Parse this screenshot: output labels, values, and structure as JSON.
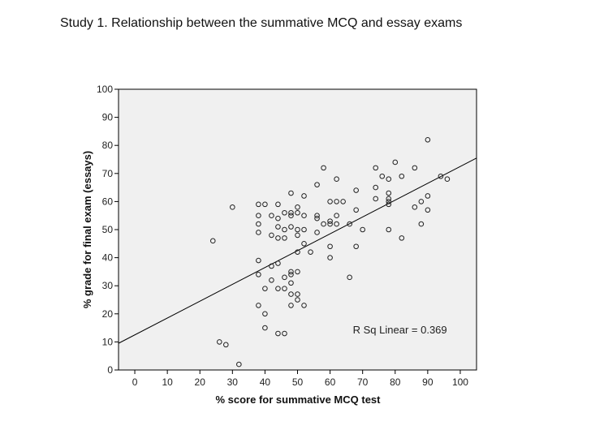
{
  "page": {
    "title": "Study 1. Relationship between the summative MCQ and essay exams"
  },
  "chart_data": {
    "type": "scatter",
    "title": "Study 1. Relationship between the summative MCQ and essay exams",
    "xlabel": "% score for summative MCQ test",
    "ylabel": "% grade for final exam (essays)",
    "xlim": [
      -5,
      105
    ],
    "ylim": [
      0,
      100
    ],
    "xticks": [
      0,
      10,
      20,
      30,
      40,
      50,
      60,
      70,
      80,
      90,
      100
    ],
    "yticks": [
      0,
      10,
      20,
      30,
      40,
      50,
      60,
      70,
      80,
      90,
      100
    ],
    "grid": false,
    "background_color": "#f0f0f0",
    "annotation": "R Sq Linear = 0.369",
    "fit_line": {
      "intercept": 12.5,
      "slope": 0.6
    },
    "points": [
      [
        24,
        46
      ],
      [
        26,
        10
      ],
      [
        28,
        9
      ],
      [
        30,
        58
      ],
      [
        32,
        2
      ],
      [
        38,
        59
      ],
      [
        38,
        55
      ],
      [
        38,
        52
      ],
      [
        38,
        49
      ],
      [
        38,
        39
      ],
      [
        38,
        34
      ],
      [
        38,
        23
      ],
      [
        40,
        59
      ],
      [
        40,
        29
      ],
      [
        40,
        20
      ],
      [
        40,
        15
      ],
      [
        42,
        55
      ],
      [
        42,
        48
      ],
      [
        42,
        37
      ],
      [
        42,
        32
      ],
      [
        44,
        59
      ],
      [
        44,
        54
      ],
      [
        44,
        51
      ],
      [
        44,
        47
      ],
      [
        44,
        38
      ],
      [
        44,
        29
      ],
      [
        44,
        13
      ],
      [
        46,
        56
      ],
      [
        46,
        50
      ],
      [
        46,
        47
      ],
      [
        46,
        33
      ],
      [
        46,
        29
      ],
      [
        46,
        13
      ],
      [
        48,
        63
      ],
      [
        48,
        56
      ],
      [
        48,
        55
      ],
      [
        48,
        51
      ],
      [
        48,
        35
      ],
      [
        48,
        34
      ],
      [
        48,
        31
      ],
      [
        48,
        27
      ],
      [
        48,
        23
      ],
      [
        50,
        58
      ],
      [
        50,
        56
      ],
      [
        50,
        50
      ],
      [
        50,
        48
      ],
      [
        50,
        42
      ],
      [
        50,
        35
      ],
      [
        50,
        27
      ],
      [
        50,
        25
      ],
      [
        52,
        62
      ],
      [
        52,
        55
      ],
      [
        52,
        50
      ],
      [
        52,
        45
      ],
      [
        52,
        23
      ],
      [
        54,
        42
      ],
      [
        56,
        66
      ],
      [
        56,
        55
      ],
      [
        56,
        54
      ],
      [
        56,
        49
      ],
      [
        58,
        72
      ],
      [
        58,
        52
      ],
      [
        60,
        60
      ],
      [
        60,
        53
      ],
      [
        60,
        52
      ],
      [
        60,
        44
      ],
      [
        60,
        40
      ],
      [
        62,
        68
      ],
      [
        62,
        60
      ],
      [
        62,
        55
      ],
      [
        62,
        52
      ],
      [
        64,
        60
      ],
      [
        66,
        52
      ],
      [
        66,
        33
      ],
      [
        68,
        64
      ],
      [
        68,
        57
      ],
      [
        68,
        44
      ],
      [
        70,
        50
      ],
      [
        74,
        72
      ],
      [
        74,
        65
      ],
      [
        74,
        61
      ],
      [
        76,
        69
      ],
      [
        78,
        68
      ],
      [
        78,
        63
      ],
      [
        78,
        61
      ],
      [
        78,
        60
      ],
      [
        78,
        59
      ],
      [
        78,
        50
      ],
      [
        80,
        74
      ],
      [
        82,
        69
      ],
      [
        82,
        47
      ],
      [
        86,
        72
      ],
      [
        86,
        58
      ],
      [
        88,
        60
      ],
      [
        88,
        52
      ],
      [
        90,
        82
      ],
      [
        90,
        62
      ],
      [
        90,
        57
      ],
      [
        94,
        69
      ],
      [
        96,
        68
      ]
    ]
  }
}
